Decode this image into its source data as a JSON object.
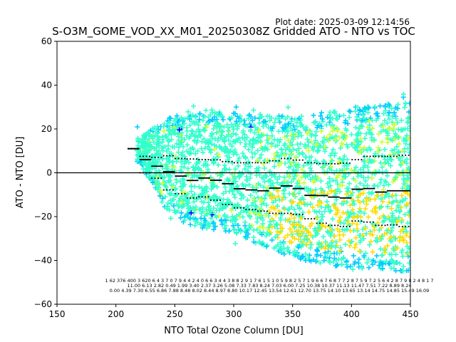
{
  "chart_data": {
    "type": "scatter",
    "plot_date": "Plot date: 2025-03-09 12:14:56",
    "title": "S-O3M_GOME_VOD_XX_M01_20250308Z Gridded ATO - NTO vs TOC",
    "xlabel": "NTO Total Ozone Column [DU]",
    "ylabel": "ATO - NTO [DU]",
    "xlim": [
      150,
      450
    ],
    "ylim": [
      -60,
      60
    ],
    "xticks": [
      "150",
      "200",
      "250",
      "300",
      "350",
      "400",
      "450"
    ],
    "yticks": [
      "−60",
      "−40",
      "−20",
      "0",
      "20",
      "40",
      "60"
    ],
    "grid": false,
    "density_colors": [
      "#33ffcc",
      "#00ccff",
      "#ccff33",
      "#ffdd00",
      "#0000ff"
    ],
    "cloud_envelope": {
      "x": [
        220,
        240,
        260,
        280,
        300,
        320,
        340,
        360,
        380,
        400,
        420,
        440,
        450
      ],
      "upper": [
        16,
        24,
        28,
        29,
        28,
        27,
        26,
        26,
        28,
        30,
        32,
        33,
        33
      ],
      "lower": [
        5,
        -15,
        -24,
        -26,
        -27,
        -33,
        -37,
        -40,
        -42,
        -44,
        -44,
        -45,
        -45
      ]
    },
    "bin_means": {
      "x": [
        215,
        225,
        235,
        245,
        255,
        265,
        275,
        285,
        295,
        305,
        315,
        325,
        335,
        345,
        355,
        365,
        375,
        385,
        395,
        405,
        415,
        425,
        435,
        445
      ],
      "mean": [
        11,
        6,
        3,
        0.5,
        -1.5,
        -3.5,
        -2.4,
        -3.4,
        -5.0,
        -7.3,
        -7.8,
        -8.2,
        -7.0,
        -6.0,
        -7.2,
        -10.3,
        -10.4,
        -11.1,
        -11.5,
        -7.5,
        -7.2,
        -8.8,
        -8.2,
        -8.2
      ],
      "plus_std": [
        11,
        7.5,
        7.0,
        7.8,
        6.5,
        6.3,
        6.0,
        5.9,
        5.1,
        4.6,
        4.6,
        4.6,
        5.5,
        6.5,
        5.8,
        4.6,
        4.2,
        4.1,
        4.4,
        6.0,
        7.5,
        7.5,
        7.5,
        8.0
      ],
      "minus_std": [
        11,
        0,
        -2.5,
        -7.8,
        -9.5,
        -11.5,
        -11.0,
        -12.5,
        -14.5,
        -16.0,
        -16.8,
        -17.5,
        -18.5,
        -18.5,
        -19.0,
        -21.0,
        -23.0,
        -24.0,
        -24.5,
        -22.0,
        -22.5,
        -24.0,
        -23.8,
        -24.5
      ]
    },
    "bin_stats_rows": [
      "1      62   376 400 3 620 6 4 3 7 0 7 9 4 4 2 4 0 6 6 3 4 4 3 8 8 2 9 1 7 6 1 5 1 0 5 9 8 2 5 7 1 9 6 6 7 6 8 7 7 2 8 7 5 9 7 2 5 6 4 2 8 7 9 8 2 4 8 1 7",
      "11.00 6.13 2.82 0.49 1.99 3.40 2.37 3.26 5.08 7.33 7.83 8.24 7.03 6.00 7.25 10.38 10.37 11.13 11.47 7.51 7.22 8.89 8.24",
      "0.00 4.39 7.30 6.55 6.86 7.88 8.48 8.02 8.44 8.97 8.80 10.17 12.45 13.54 12.61 12.70 13.75 14.10 13.65 13.14 14.75 14.85 15.49 16.09"
    ],
    "zero_line": 0
  }
}
